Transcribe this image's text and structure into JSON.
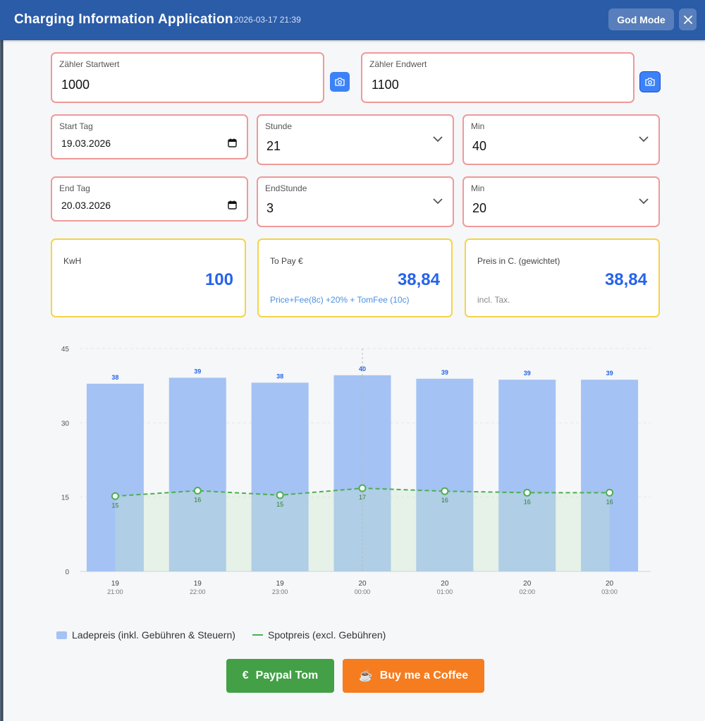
{
  "header": {
    "title": "Charging Information Application",
    "timestamp": "2026-03-17 21:39",
    "god_mode_label": "God Mode"
  },
  "meter": {
    "start_label": "Zähler Startwert",
    "start_value": "1000",
    "end_label": "Zähler Endwert",
    "end_value": "1100"
  },
  "start": {
    "day_label": "Start Tag",
    "day_value": "19.03.2026",
    "hour_label": "Stunde",
    "hour_value": "21",
    "min_label": "Min",
    "min_value": "40"
  },
  "end": {
    "day_label": "End Tag",
    "day_value": "20.03.2026",
    "hour_label": "EndStunde",
    "hour_value": "3",
    "min_label": "Min",
    "min_value": "20"
  },
  "summary": {
    "kwh_label": "KwH",
    "kwh_value": "100",
    "pay_label": "To Pay €",
    "pay_value": "38,84",
    "pay_note": "Price+Fee(8c) +20% + TomFee (10c)",
    "price_label": "Preis in C. (gewichtet)",
    "price_value": "38,84",
    "price_note": "incl. Tax."
  },
  "chart_data": {
    "type": "bar",
    "categories": [
      "19\n21:00",
      "19\n22:00",
      "19\n23:00",
      "20\n00:00",
      "20\n01:00",
      "20\n02:00",
      "20\n03:00"
    ],
    "x_day": [
      "19",
      "19",
      "19",
      "20",
      "20",
      "20",
      "20"
    ],
    "x_time": [
      "21:00",
      "22:00",
      "23:00",
      "00:00",
      "01:00",
      "02:00",
      "03:00"
    ],
    "series": [
      {
        "name": "Ladepreis (inkl. Gebühren & Steuern)",
        "type": "bar",
        "values": [
          38,
          39,
          38,
          40,
          39,
          39,
          39
        ],
        "raw": [
          37.9,
          39.1,
          38.1,
          39.6,
          38.9,
          38.7,
          38.7
        ],
        "color": "#a4c2f4",
        "label_color": "#2563eb"
      },
      {
        "name": "Spotpreis (excl. Gebühren)",
        "type": "line",
        "values": [
          15,
          16,
          15,
          17,
          16,
          16,
          16
        ],
        "raw": [
          15.2,
          16.3,
          15.4,
          16.8,
          16.2,
          15.9,
          15.9
        ],
        "color": "#4caf50"
      }
    ],
    "ylim": [
      0,
      45
    ],
    "yticks": [
      0,
      15,
      30,
      45
    ],
    "grid": true,
    "hover_index": 3,
    "legend_position": "bottom-left"
  },
  "buttons": {
    "paypal_label": "Paypal Tom",
    "paypal_icon": "€",
    "coffee_label": "Buy me a Coffee",
    "coffee_icon": "☕",
    "paypal_color": "#43a047",
    "coffee_color": "#f57c1f"
  },
  "colors": {
    "header": "#2a5ca8",
    "accent": "#2563eb",
    "field_border": "#ef9a9a",
    "card_border": "#f5d447"
  }
}
